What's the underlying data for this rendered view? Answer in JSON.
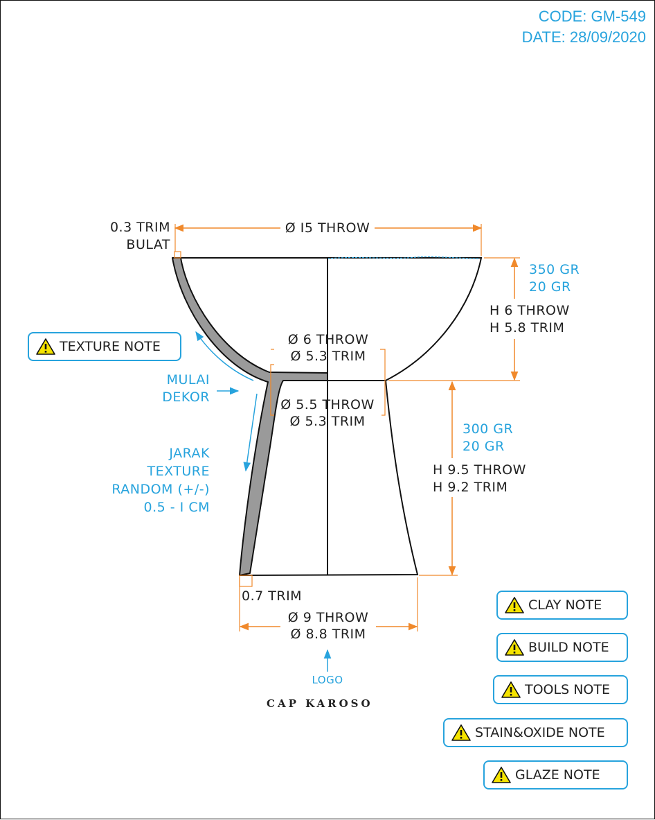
{
  "header": {
    "code": "CODE: GM-549",
    "date": "DATE: 28/09/2020"
  },
  "dimensions": {
    "rim_trim": [
      "0.3 TRIM",
      "BULAT"
    ],
    "top_diameter": "Ø I5 THROW",
    "bowl_weight": [
      "350 GR",
      "20 GR"
    ],
    "bowl_height": [
      "H 6 THROW",
      "H 5.8 TRIM"
    ],
    "bowl_base_diameter": [
      "Ø 6 THROW",
      "Ø 5.3 TRIM"
    ],
    "stem_top_diameter": [
      "Ø 5.5 THROW",
      "Ø 5.3 TRIM"
    ],
    "stem_weight": [
      "300 GR",
      "20 GR"
    ],
    "stem_height": [
      "H 9.5 THROW",
      "H 9.2 TRIM"
    ],
    "foot_trim": "0.7 TRIM",
    "bottom_diameter": [
      "Ø 9 THROW",
      "Ø 8.8 TRIM"
    ]
  },
  "annotations": {
    "mulai_dekor": [
      "MULAI",
      "DEKOR"
    ],
    "jarak_texture": [
      "JARAK",
      "TEXTURE",
      "RANDOM (+/-)",
      "0.5 - I CM"
    ],
    "logo": "LOGO",
    "stamp": "CAP KAROSO"
  },
  "notes": {
    "texture": "TEXTURE NOTE",
    "clay": "CLAY NOTE",
    "build": "BUILD NOTE",
    "tools": "TOOLS NOTE",
    "stain_oxide": "STAIN&OXIDE NOTE",
    "glaze": "GLAZE NOTE"
  },
  "colors": {
    "dimension": "#f0892b",
    "annotation": "#27a3dd",
    "section_fill": "#9a9a9a",
    "line": "#111111",
    "warning": "#f5e400"
  },
  "icons": {
    "note_icon": "warning-triangle-icon"
  }
}
